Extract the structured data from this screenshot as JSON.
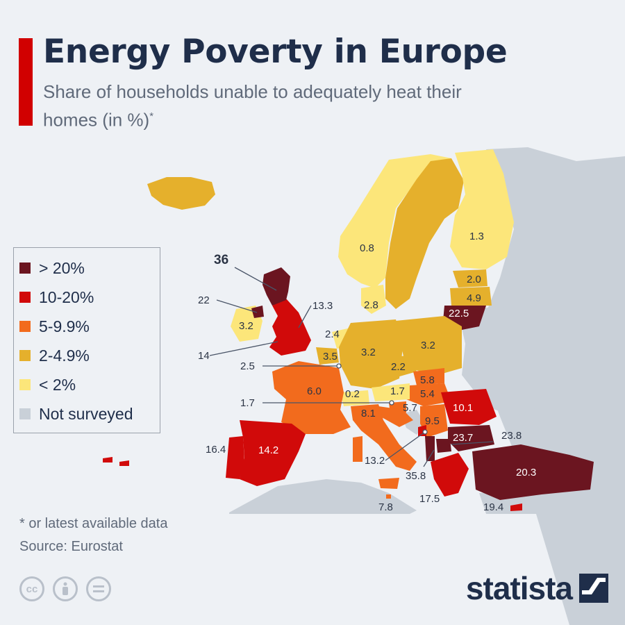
{
  "header": {
    "title": "Energy Poverty in Europe",
    "subtitle": "Share of households unable to adequately heat their homes",
    "subtitle_unit": "(in %)",
    "subtitle_mark": "*"
  },
  "legend": [
    {
      "label": "> 20%",
      "color": "#6b1520"
    },
    {
      "label": "10-20%",
      "color": "#d10a0a"
    },
    {
      "label": "5-9.9%",
      "color": "#f26b1d"
    },
    {
      "label": "2-4.9%",
      "color": "#e5b02c"
    },
    {
      "label": "< 2%",
      "color": "#fce67a"
    },
    {
      "label": "Not surveyed",
      "color": "#c9d0d8"
    }
  ],
  "map_values": {
    "iceland": "",
    "norway": "0.8",
    "sweden": "",
    "finland": "1.3",
    "estonia": "2.0",
    "latvia": "4.9",
    "lithuania": "22.5",
    "denmark": "2.8",
    "ireland": "3.2",
    "uk": "",
    "uk_scotland": "36",
    "uk_ni": "22",
    "uk_north_england": "13.3",
    "uk_wales": "14",
    "netherlands": "2.4",
    "belgium": "3.5",
    "luxembourg": "2.5",
    "germany": "3.2",
    "poland": "3.2",
    "czechia": "2.2",
    "slovakia": "5.8",
    "hungary": "5.4",
    "austria": "1.7",
    "switzerland": "0.2",
    "slovenia": "5.7",
    "liechtenstein": "1.7",
    "france": "6.0",
    "croatia": "8.1",
    "serbia": "9.5",
    "romania": "10.1",
    "bulgaria": "23.7",
    "north_macedonia": "23.8",
    "albania": "35.8",
    "montenegro": "13.2",
    "greece": "17.5",
    "cyprus": "19.4",
    "turkey": "20.3",
    "spain": "14.2",
    "portugal": "16.4",
    "italy": "",
    "malta": "7.8"
  },
  "footer": {
    "footnote": "* or latest available data",
    "source": "Source: Eurostat",
    "brand": "statista",
    "license_icons": [
      "cc-icon",
      "attribution-icon",
      "no-derivatives-icon"
    ]
  }
}
